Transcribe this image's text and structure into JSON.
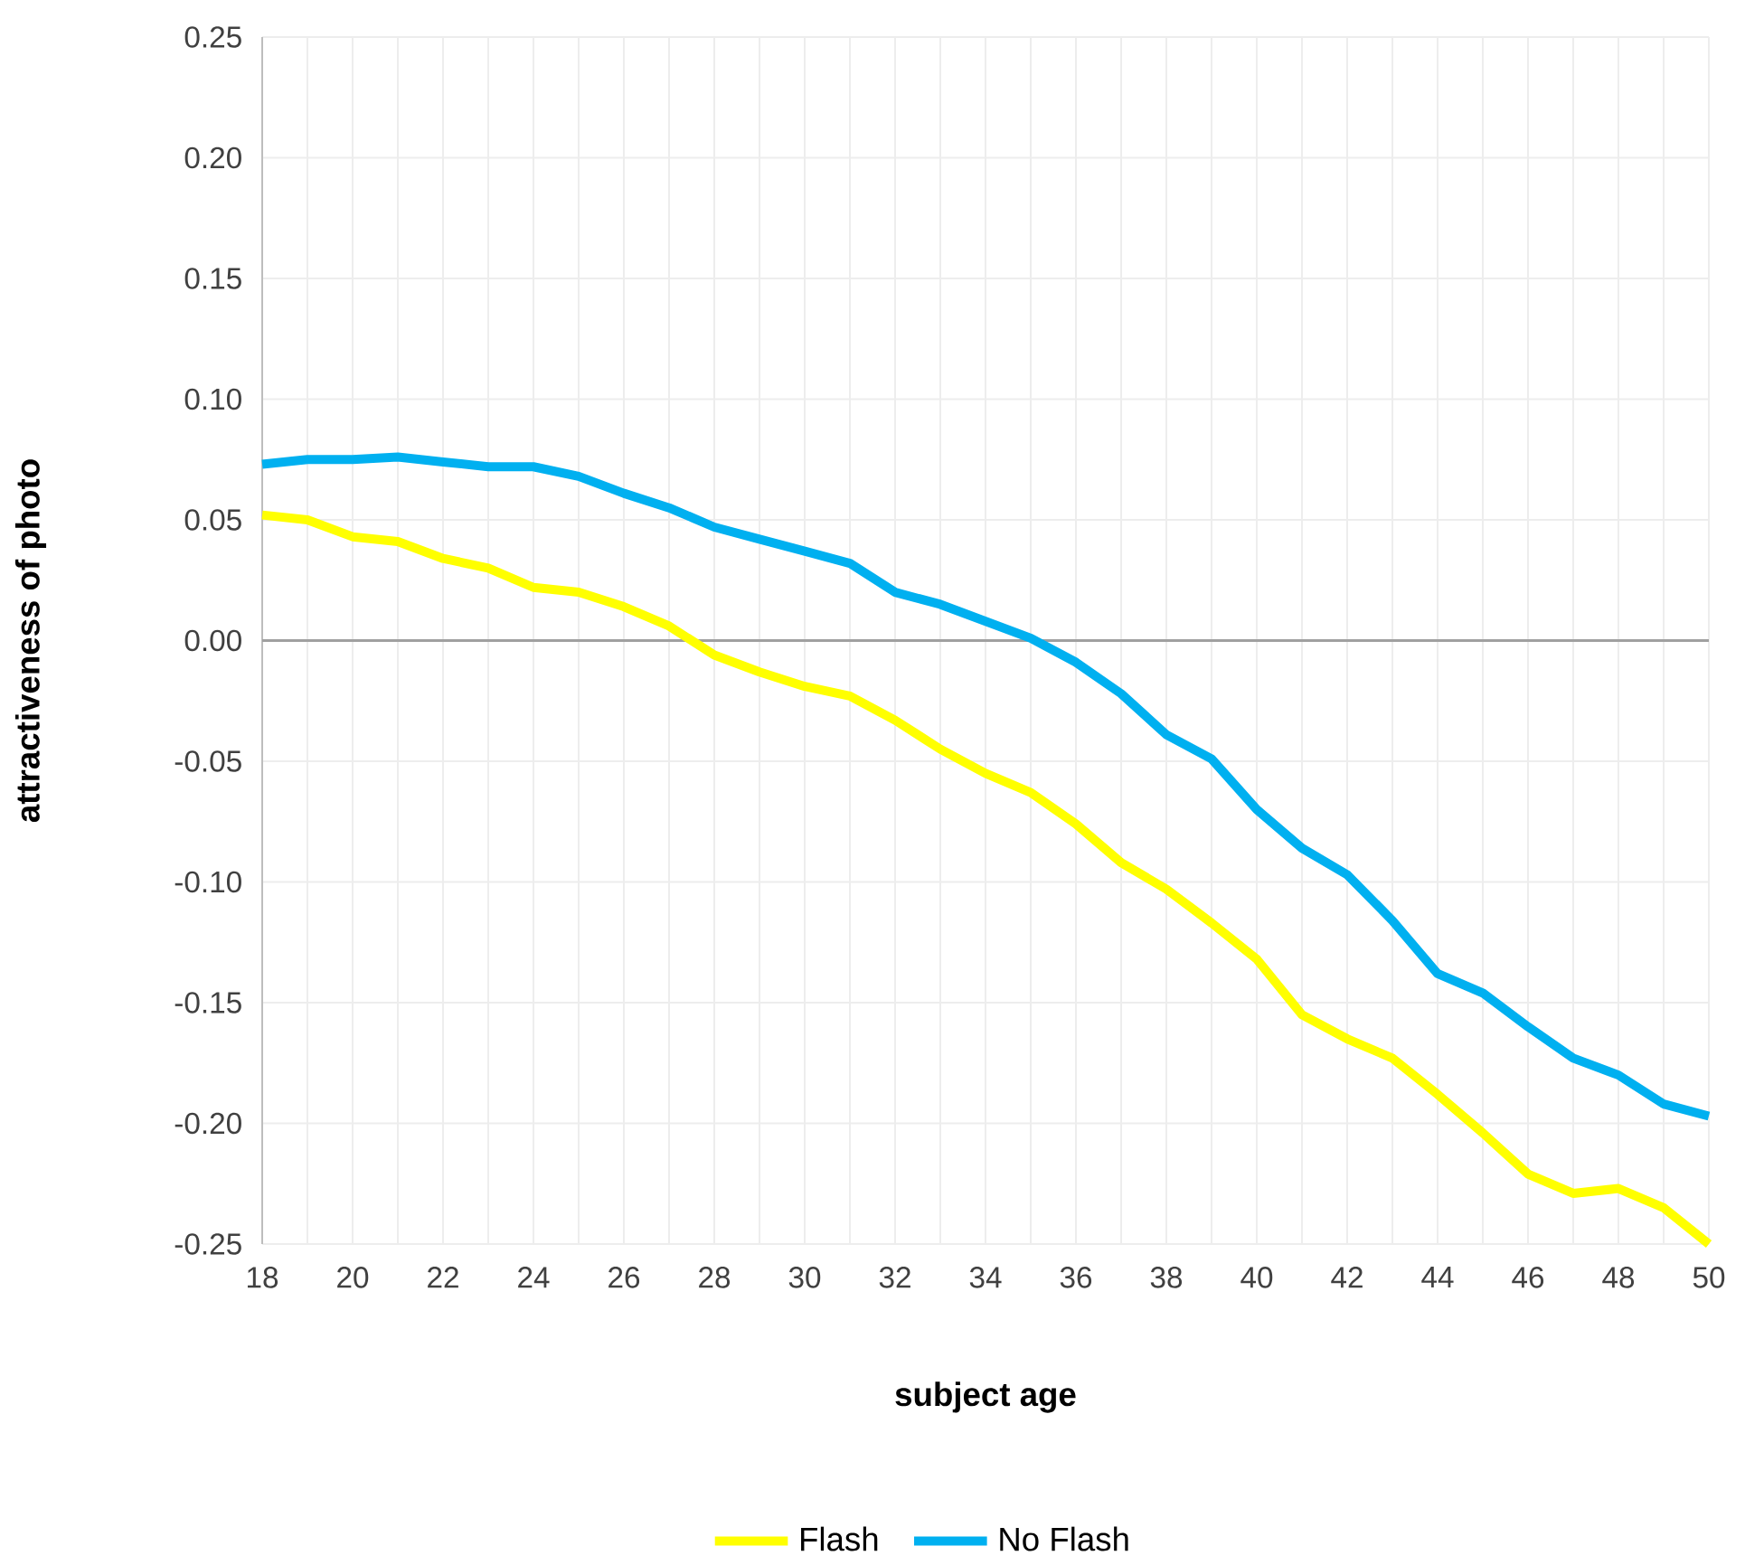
{
  "chart_data": {
    "type": "line",
    "xlabel": "subject age",
    "ylabel": "attractiveness of photo",
    "x": [
      18,
      19,
      20,
      21,
      22,
      23,
      24,
      25,
      26,
      27,
      28,
      29,
      30,
      31,
      32,
      33,
      34,
      35,
      36,
      37,
      38,
      39,
      40,
      41,
      42,
      43,
      44,
      45,
      46,
      47,
      48,
      49,
      50
    ],
    "series": [
      {
        "name": "Flash",
        "color": "#ffff00",
        "values": [
          0.052,
          0.05,
          0.043,
          0.041,
          0.034,
          0.03,
          0.022,
          0.02,
          0.014,
          0.006,
          -0.006,
          -0.013,
          -0.019,
          -0.023,
          -0.033,
          -0.045,
          -0.055,
          -0.063,
          -0.076,
          -0.092,
          -0.103,
          -0.117,
          -0.132,
          -0.155,
          -0.165,
          -0.173,
          -0.188,
          -0.204,
          -0.221,
          -0.229,
          -0.227,
          -0.235,
          -0.25
        ]
      },
      {
        "name": "No Flash",
        "color": "#00b0f0",
        "values": [
          0.073,
          0.075,
          0.075,
          0.076,
          0.074,
          0.072,
          0.072,
          0.068,
          0.061,
          0.055,
          0.047,
          0.042,
          0.037,
          0.032,
          0.02,
          0.015,
          0.008,
          0.001,
          -0.009,
          -0.022,
          -0.039,
          -0.049,
          -0.07,
          -0.086,
          -0.097,
          -0.116,
          -0.138,
          -0.146,
          -0.16,
          -0.173,
          -0.18,
          -0.192,
          -0.197
        ]
      }
    ],
    "xlim": [
      18,
      50
    ],
    "xticks": [
      18,
      {
        "value": 19,
        "label": null
      },
      20,
      {
        "value": 21,
        "label": null
      },
      22,
      {
        "value": 23,
        "label": null
      },
      24,
      {
        "value": 25,
        "label": null
      },
      26,
      {
        "value": 27,
        "label": null
      },
      28,
      {
        "value": 29,
        "label": null
      },
      30,
      {
        "value": 31,
        "label": null
      },
      32,
      {
        "value": 33,
        "label": null
      },
      34,
      {
        "value": 35,
        "label": null
      },
      36,
      {
        "value": 37,
        "label": null
      },
      38,
      {
        "value": 39,
        "label": null
      },
      40,
      {
        "value": 41,
        "label": null
      },
      42,
      {
        "value": 43,
        "label": null
      },
      44,
      {
        "value": 45,
        "label": null
      },
      46,
      {
        "value": 47,
        "label": null
      },
      48,
      {
        "value": 49,
        "label": null
      },
      50
    ],
    "ylim": [
      -0.25,
      0.25
    ],
    "yticks": [
      {
        "value": -0.25,
        "label": "-0.25"
      },
      {
        "value": -0.2,
        "label": "-0.20"
      },
      {
        "value": -0.15,
        "label": "-0.15"
      },
      {
        "value": -0.1,
        "label": "-0.10"
      },
      {
        "value": -0.05,
        "label": "-0.05"
      },
      {
        "value": 0,
        "label": "0.00"
      },
      {
        "value": 0.05,
        "label": "0.05"
      },
      {
        "value": 0.1,
        "label": "0.10"
      },
      {
        "value": 0.15,
        "label": "0.15"
      },
      {
        "value": 0.2,
        "label": "0.20"
      },
      {
        "value": 0.25,
        "label": "0.25"
      }
    ],
    "ref_lines": [
      {
        "axis": "y",
        "value": 0,
        "color": "#a0a0a0"
      }
    ],
    "grid": true,
    "legend": "bottom",
    "marker": "none",
    "line_style": "solid"
  }
}
